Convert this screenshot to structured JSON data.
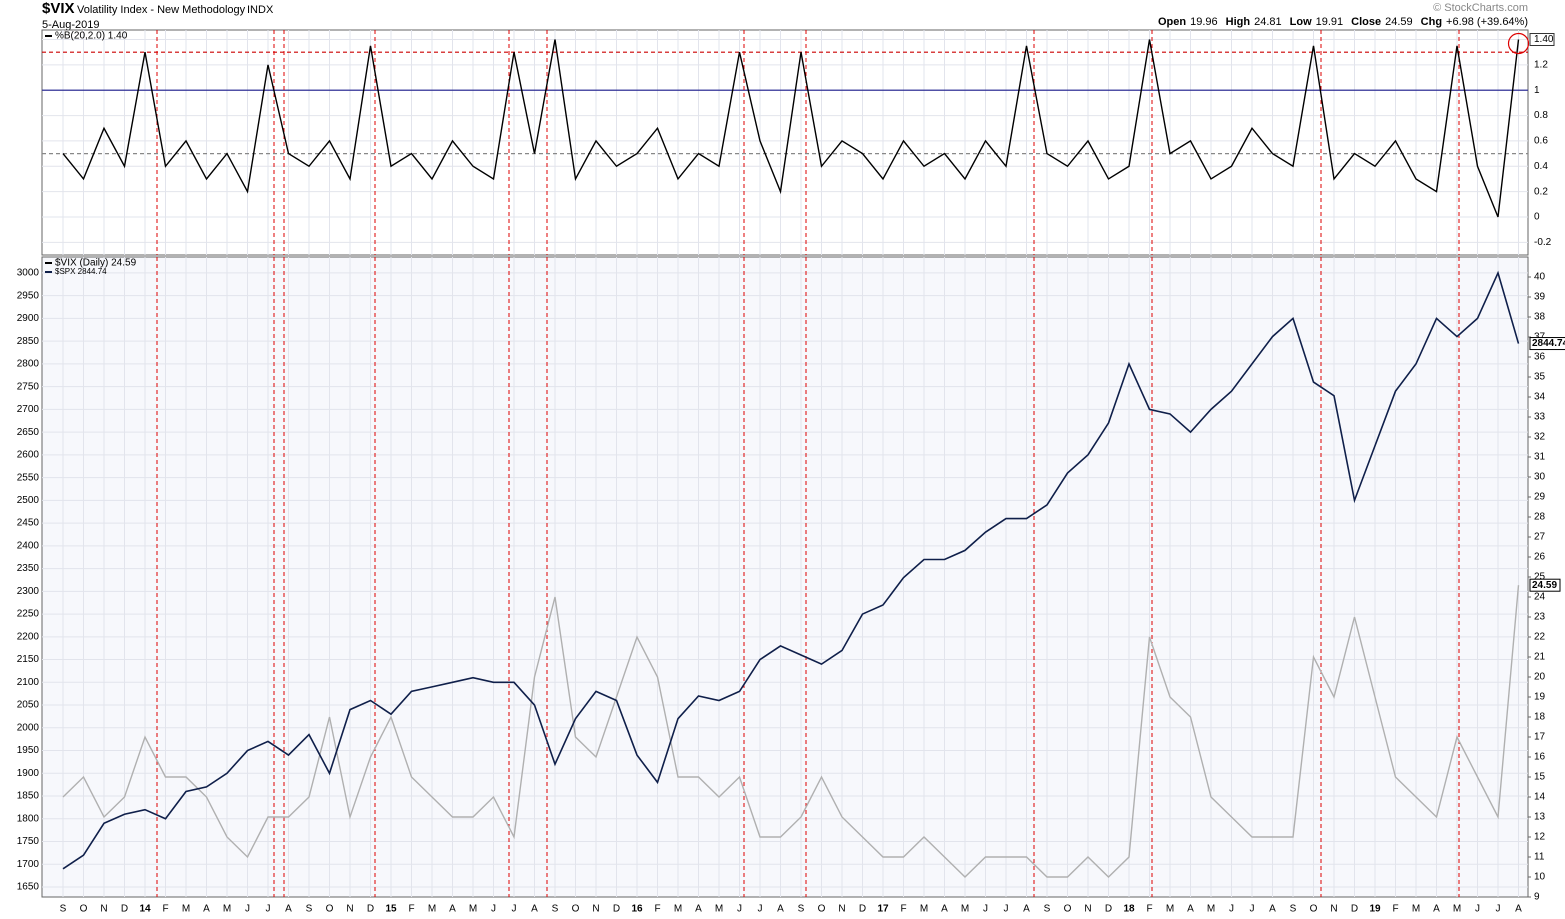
{
  "header": {
    "symbol": "$VIX",
    "title": "Volatility Index - New Methodology",
    "exchange": "INDX",
    "date": "5-Aug-2019",
    "quote": [
      {
        "label": "Open",
        "value": "19.96"
      },
      {
        "label": "High",
        "value": "24.81"
      },
      {
        "label": "Low",
        "value": "19.91"
      },
      {
        "label": "Close",
        "value": "24.59"
      },
      {
        "label": "Chg",
        "value": "+6.98 (+39.64%)"
      }
    ],
    "credit": "© StockCharts.com"
  },
  "chart_data": [
    {
      "type": "line",
      "ylim": [
        -0.3,
        1.475
      ],
      "yticks": [
        -0.2,
        0.0,
        0.2,
        0.4,
        0.6,
        0.8,
        1.0,
        1.2,
        {
          "value": 1.4,
          "label": "1.40"
        }
      ],
      "grid": true,
      "reference_lines": [
        {
          "value": 1.3,
          "color": "#cc0000",
          "dashed": true
        },
        {
          "value": 1.0,
          "color": "#1a1a8c",
          "dashed": false
        },
        {
          "value": 0.5,
          "color": "#888888",
          "dashed": true
        }
      ],
      "series": [
        {
          "name": "%B(20,2.0) 1.40",
          "color": "#000000",
          "values": [
            0.5,
            0.3,
            0.7,
            0.4,
            1.3,
            0.4,
            0.6,
            0.3,
            0.5,
            0.2,
            1.2,
            0.5,
            0.4,
            0.6,
            0.3,
            1.35,
            0.4,
            0.5,
            0.3,
            0.6,
            0.4,
            0.3,
            1.3,
            0.5,
            1.4,
            0.3,
            0.6,
            0.4,
            0.5,
            0.7,
            0.3,
            0.5,
            0.4,
            1.3,
            0.6,
            0.2,
            1.3,
            0.4,
            0.6,
            0.5,
            0.3,
            0.6,
            0.4,
            0.5,
            0.3,
            0.6,
            0.4,
            1.35,
            0.5,
            0.4,
            0.6,
            0.3,
            0.4,
            1.4,
            0.5,
            0.6,
            0.3,
            0.4,
            0.7,
            0.5,
            0.4,
            1.35,
            0.3,
            0.5,
            0.4,
            0.6,
            0.3,
            0.2,
            1.35,
            0.4,
            0.0,
            1.4
          ]
        }
      ]
    },
    {
      "type": "line",
      "categories": [
        "S",
        "O",
        "N",
        "D",
        "14",
        "F",
        "M",
        "A",
        "M",
        "J",
        "J",
        "A",
        "S",
        "O",
        "N",
        "D",
        "15",
        "F",
        "M",
        "A",
        "M",
        "J",
        "J",
        "A",
        "S",
        "O",
        "N",
        "D",
        "16",
        "F",
        "M",
        "A",
        "M",
        "J",
        "J",
        "A",
        "S",
        "O",
        "N",
        "D",
        "17",
        "F",
        "M",
        "A",
        "M",
        "J",
        "J",
        "A",
        "S",
        "O",
        "N",
        "D",
        "18",
        "F",
        "M",
        "A",
        "M",
        "J",
        "J",
        "A",
        "S",
        "O",
        "N",
        "D",
        "19",
        "F",
        "M",
        "A",
        "M",
        "J",
        "J",
        "A"
      ],
      "ylim": [
        1628,
        3035
      ],
      "yticks": [
        1650,
        1700,
        1750,
        1800,
        1850,
        1900,
        1950,
        2000,
        2050,
        2100,
        2150,
        2200,
        2250,
        2300,
        2350,
        2400,
        2450,
        2500,
        2550,
        2600,
        2650,
        2700,
        2750,
        2800,
        2850,
        2900,
        2950,
        3000
      ],
      "y2lim": [
        9,
        41
      ],
      "y2ticks": [
        9,
        10,
        11,
        12,
        13,
        14,
        15,
        16,
        17,
        18,
        19,
        20,
        21,
        22,
        23,
        24,
        25,
        26,
        27,
        28,
        29,
        30,
        31,
        32,
        33,
        34,
        35,
        36,
        37,
        38,
        39,
        40
      ],
      "grid": true,
      "series": [
        {
          "name": "$VIX (Daily) 24.59",
          "color": "#b0b0b0",
          "axis": "y2",
          "values": [
            14,
            15,
            13,
            14,
            17,
            15,
            15,
            14,
            12,
            11,
            13,
            13,
            14,
            18,
            13,
            16,
            18,
            15,
            14,
            13,
            13,
            14,
            12,
            20,
            24,
            17,
            16,
            19,
            22,
            20,
            15,
            15,
            14,
            15,
            12,
            12,
            13,
            15,
            13,
            12,
            11,
            11,
            12,
            11,
            10,
            11,
            11,
            11,
            10,
            10,
            11,
            10,
            11,
            22,
            19,
            18,
            14,
            13,
            12,
            12,
            12,
            21,
            19,
            23,
            19,
            15,
            14,
            13,
            17,
            15,
            13,
            24.59
          ]
        },
        {
          "name": "$SPX 2844.74",
          "color": "#0f1f4a",
          "axis": "y",
          "values": [
            1690,
            1720,
            1790,
            1810,
            1820,
            1800,
            1860,
            1870,
            1900,
            1950,
            1970,
            1940,
            1985,
            1900,
            2040,
            2060,
            2030,
            2080,
            2090,
            2100,
            2110,
            2100,
            2100,
            2050,
            1920,
            2020,
            2080,
            2060,
            1940,
            1880,
            2020,
            2070,
            2060,
            2080,
            2150,
            2180,
            2160,
            2140,
            2170,
            2250,
            2270,
            2330,
            2370,
            2370,
            2390,
            2430,
            2460,
            2460,
            2490,
            2560,
            2600,
            2670,
            2800,
            2700,
            2690,
            2650,
            2700,
            2740,
            2800,
            2860,
            2900,
            2760,
            2730,
            2500,
            2620,
            2740,
            2800,
            2900,
            2860,
            2900,
            3000,
            2844.74
          ]
        }
      ]
    }
  ]
}
